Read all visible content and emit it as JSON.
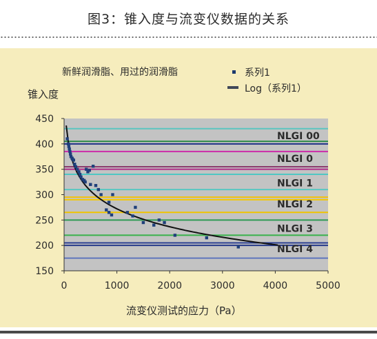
{
  "header": {
    "title": "图3：锥入度与流变仪数据的关系"
  },
  "chart_data": {
    "type": "scatter",
    "subtitle": "新鲜润滑脂、用过的润滑脂",
    "ylabel": "锥入度",
    "xlabel": "流变仪测试的应力（Pa）",
    "xlim": [
      0,
      5000
    ],
    "ylim": [
      150,
      450
    ],
    "x_ticks": [
      "0",
      "1000",
      "2000",
      "3000",
      "4000",
      "5000"
    ],
    "y_ticks": [
      "150",
      "200",
      "250",
      "300",
      "350",
      "400",
      "450"
    ],
    "legend": {
      "placement": "top-right",
      "entries": [
        {
          "name": "系列1",
          "marker": "square",
          "color": "#1c3a6e"
        },
        {
          "name": "Log（系列1）",
          "marker": "line",
          "color": "#404858"
        }
      ]
    },
    "reference_lines": [
      {
        "y": 430,
        "color": "#5cc5c0"
      },
      {
        "y": 405,
        "color": "#2e8a48"
      },
      {
        "y": 400,
        "color": "#1e2f86"
      },
      {
        "y": 385,
        "color": "#cc2aa8"
      },
      {
        "y": 355,
        "color": "#8b3b6e"
      },
      {
        "y": 350,
        "color": "#b02a88"
      },
      {
        "y": 340,
        "color": "#4ec7c3"
      },
      {
        "y": 310,
        "color": "#58c7c1"
      },
      {
        "y": 295,
        "color": "#f2c20b"
      },
      {
        "y": 290,
        "color": "#f6c900"
      },
      {
        "y": 265,
        "color": "#f0c400"
      },
      {
        "y": 250,
        "color": "#2e9a54"
      },
      {
        "y": 220,
        "color": "#38b24b"
      },
      {
        "y": 205,
        "color": "#2a3e92"
      },
      {
        "y": 200,
        "color": "#24388a"
      },
      {
        "y": 175,
        "color": "#5e76bd"
      }
    ],
    "band_labels": [
      {
        "text": "NLGI 00",
        "y": 415
      },
      {
        "text": "NLGI 0",
        "y": 370
      },
      {
        "text": "NLGI 1",
        "y": 322
      },
      {
        "text": "NLGI 2",
        "y": 280
      },
      {
        "text": "NLGI 3",
        "y": 232
      },
      {
        "text": "NLGI 4",
        "y": 192
      }
    ],
    "series": [
      {
        "name": "系列1",
        "points": [
          [
            60,
            410
          ],
          [
            80,
            400
          ],
          [
            90,
            395
          ],
          [
            100,
            390
          ],
          [
            110,
            385
          ],
          [
            120,
            380
          ],
          [
            130,
            375
          ],
          [
            150,
            372
          ],
          [
            160,
            370
          ],
          [
            180,
            368
          ],
          [
            200,
            360
          ],
          [
            220,
            355
          ],
          [
            250,
            350
          ],
          [
            280,
            345
          ],
          [
            300,
            340
          ],
          [
            320,
            335
          ],
          [
            350,
            330
          ],
          [
            380,
            328
          ],
          [
            400,
            325
          ],
          [
            420,
            350
          ],
          [
            450,
            345
          ],
          [
            480,
            348
          ],
          [
            500,
            320
          ],
          [
            550,
            356
          ],
          [
            600,
            318
          ],
          [
            650,
            310
          ],
          [
            700,
            300
          ],
          [
            800,
            270
          ],
          [
            850,
            265
          ],
          [
            850,
            285
          ],
          [
            900,
            260
          ],
          [
            920,
            300
          ],
          [
            1200,
            265
          ],
          [
            1300,
            258
          ],
          [
            1350,
            275
          ],
          [
            1500,
            245
          ],
          [
            1700,
            240
          ],
          [
            1800,
            250
          ],
          [
            1900,
            245
          ],
          [
            2100,
            220
          ],
          [
            2700,
            215
          ],
          [
            3300,
            197
          ]
        ]
      },
      {
        "name": "Log（系列1）",
        "fit": {
          "a": 624.4,
          "b": -51.0,
          "x_from": 40,
          "x_to": 4050
        }
      }
    ]
  }
}
